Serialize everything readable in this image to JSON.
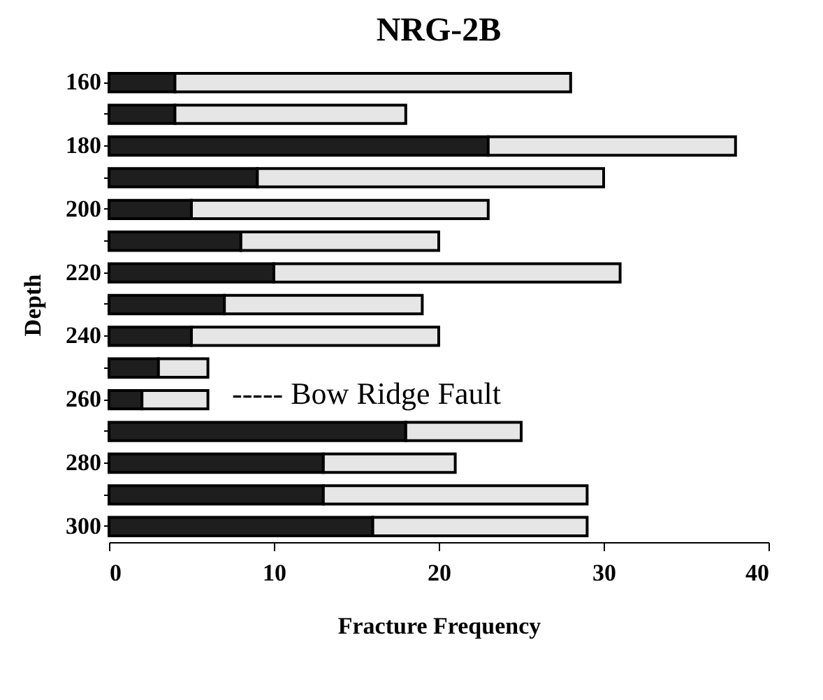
{
  "chart_data": {
    "type": "bar",
    "orientation": "horizontal",
    "stacked": true,
    "title": "NRG-2B",
    "xlabel": "Fracture Frequency",
    "ylabel": "Depth",
    "categories": [
      "160",
      null,
      "180",
      null,
      "200",
      null,
      "220",
      null,
      "240",
      null,
      "260",
      null,
      "280",
      null,
      "300"
    ],
    "series": [
      {
        "color": "#1e1e1e",
        "values": [
          4,
          4,
          23,
          9,
          5,
          8,
          10,
          7,
          5,
          3,
          2,
          18,
          13,
          13,
          16
        ]
      },
      {
        "color": "#e6e6e6",
        "values": [
          24,
          14,
          15,
          21,
          18,
          12,
          21,
          12,
          15,
          3,
          4,
          7,
          8,
          16,
          13
        ]
      }
    ],
    "xlim": [
      0,
      40
    ],
    "xticks": [
      0,
      10,
      20,
      30,
      40
    ],
    "grid": false,
    "annotations": [
      "----- Bow Ridge Fault"
    ]
  }
}
